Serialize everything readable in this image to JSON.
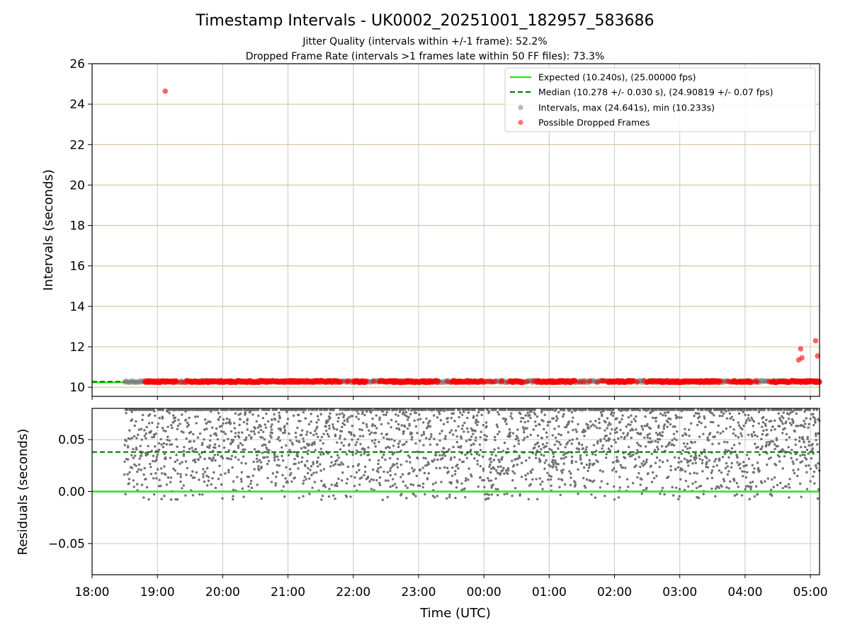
{
  "chart_data": {
    "type": "scatter",
    "title": "Timestamp Intervals - UK0002_20251001_182957_583686",
    "subtitle_lines": [
      "Jitter Quality (intervals within +/-1 frame): 52.2%",
      "Dropped Frame Rate (intervals >1 frames late within 50 FF files): 73.3%"
    ],
    "xlabel": "Time (UTC)",
    "x_ticks": [
      "18:00",
      "19:00",
      "20:00",
      "21:00",
      "22:00",
      "23:00",
      "00:00",
      "01:00",
      "02:00",
      "03:00",
      "04:00",
      "05:00"
    ],
    "x_range_hours": [
      18.0,
      29.14
    ],
    "grid": true,
    "top_panel": {
      "ylabel": "Intervals (seconds)",
      "ylim": [
        9.55,
        26
      ],
      "y_ticks": [
        10,
        12,
        14,
        16,
        18,
        20,
        22,
        24,
        26
      ],
      "expected_interval": 10.24,
      "median_interval": 10.278,
      "data_start_hour": 18.5,
      "data_end_hour": 29.14,
      "typical_interval_range": [
        10.233,
        10.33
      ],
      "gray_gap_segments_hours": [
        [
          18.5,
          18.8
        ],
        [
          19.3,
          19.5
        ],
        [
          21.8,
          22.0
        ],
        [
          22.2,
          22.4
        ],
        [
          23.3,
          23.5
        ],
        [
          24.0,
          24.4
        ],
        [
          24.6,
          24.8
        ],
        [
          25.4,
          25.9
        ],
        [
          26.3,
          26.5
        ],
        [
          27.6,
          27.8
        ],
        [
          28.1,
          28.4
        ]
      ],
      "dropped_frames_outliers": [
        {
          "x": 19.12,
          "y": 24.641
        },
        {
          "x": 28.82,
          "y": 11.35
        },
        {
          "x": 28.85,
          "y": 11.9
        },
        {
          "x": 28.87,
          "y": 11.45
        },
        {
          "x": 29.08,
          "y": 12.3
        },
        {
          "x": 29.11,
          "y": 11.55
        }
      ],
      "legend": {
        "placement": "top-right",
        "entries": [
          {
            "label": "Expected (10.240s), (25.00000 fps)",
            "color": "#22e622",
            "style": "solid-line"
          },
          {
            "label": "Median (10.278 +/- 0.030 s), (24.90819 +/- 0.07 fps)",
            "color": "#007f00",
            "style": "dashed-line"
          },
          {
            "label": "Intervals, max (24.641s), min (10.233s)",
            "color": "#808080",
            "style": "marker"
          },
          {
            "label": "Possible Dropped Frames",
            "color": "#ff0000",
            "style": "marker"
          }
        ]
      }
    },
    "bottom_panel": {
      "ylabel": "Residuals (seconds)",
      "ylim": [
        -0.08,
        0.08
      ],
      "y_ticks": [
        -0.05,
        0.0,
        0.05
      ],
      "y_tick_labels": [
        "−0.05",
        "0.00",
        "0.05"
      ],
      "expected_residual": 0.0,
      "median_residual": 0.038,
      "residual_distribution": {
        "min": -0.008,
        "max": 0.08,
        "point_color": "#707070"
      }
    },
    "colors": {
      "expected": "#22e622",
      "median": "#007f00",
      "intervals": "#808080",
      "dropped": "#ff0000",
      "y_grid_top": "#d4c38f",
      "grid": "#c8c8c8"
    }
  }
}
